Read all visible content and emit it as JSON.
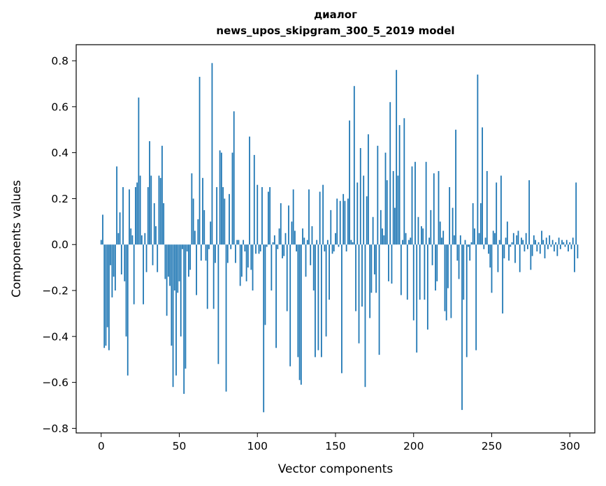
{
  "chart_data": {
    "type": "bar",
    "title": "диалог",
    "subtitle": "news_upos_skipgram_300_5_2019 model",
    "xlabel": "Vector components",
    "ylabel": "Components values",
    "xlim": [
      -16,
      316
    ],
    "ylim": [
      -0.82,
      0.87
    ],
    "xticks": [
      0,
      50,
      100,
      150,
      200,
      250,
      300
    ],
    "yticks": [
      -0.8,
      -0.6,
      -0.4,
      -0.2,
      0.0,
      0.2,
      0.4,
      0.6,
      0.8
    ],
    "ytick_labels": [
      "−0.8",
      "−0.6",
      "−0.4",
      "−0.2",
      "0.0",
      "0.2",
      "0.4",
      "0.6",
      "0.8"
    ],
    "bar_color": "#1f77b4",
    "values": [
      0.02,
      0.13,
      -0.45,
      -0.44,
      -0.36,
      -0.46,
      -0.09,
      -0.23,
      -0.14,
      -0.2,
      0.34,
      0.05,
      0.14,
      -0.13,
      0.25,
      -0.16,
      -0.4,
      -0.57,
      0.24,
      0.07,
      0.04,
      -0.26,
      0.25,
      0.27,
      0.64,
      0.3,
      0.04,
      -0.26,
      0.05,
      -0.12,
      0.25,
      0.45,
      0.3,
      -0.09,
      0.18,
      0.08,
      -0.12,
      0.3,
      0.29,
      0.43,
      0.18,
      -0.15,
      -0.31,
      -0.14,
      -0.18,
      -0.44,
      -0.62,
      -0.2,
      -0.57,
      -0.21,
      -0.16,
      -0.4,
      -0.02,
      -0.65,
      -0.54,
      -0.03,
      -0.14,
      -0.11,
      0.31,
      0.2,
      0.06,
      -0.22,
      0.11,
      0.73,
      -0.07,
      0.29,
      0.15,
      -0.07,
      -0.28,
      -0.02,
      0.1,
      0.79,
      -0.28,
      -0.08,
      0.25,
      -0.52,
      0.41,
      0.4,
      0.25,
      0.2,
      -0.64,
      -0.08,
      0.22,
      -0.02,
      0.4,
      0.58,
      -0.08,
      0.02,
      0.02,
      -0.18,
      -0.14,
      0.02,
      -0.03,
      -0.16,
      -0.1,
      0.47,
      -0.11,
      -0.2,
      0.39,
      -0.04,
      0.26,
      -0.04,
      -0.03,
      0.25,
      -0.73,
      -0.35,
      -0.01,
      0.23,
      0.25,
      -0.2,
      0.01,
      0.04,
      -0.45,
      -0.02,
      0.07,
      0.18,
      -0.06,
      -0.05,
      0.05,
      -0.29,
      0.17,
      -0.53,
      0.1,
      0.24,
      0.06,
      -0.03,
      -0.49,
      -0.59,
      -0.61,
      0.07,
      0.03,
      -0.14,
      0.02,
      0.24,
      -0.09,
      0.08,
      -0.2,
      -0.49,
      0.02,
      -0.46,
      0.23,
      -0.49,
      0.26,
      -0.03,
      -0.4,
      0.02,
      -0.24,
      0.15,
      -0.04,
      -0.03,
      0.05,
      0.2,
      -0.01,
      0.19,
      -0.56,
      0.22,
      0.19,
      -0.03,
      0.2,
      0.54,
      0.02,
      0.01,
      0.69,
      -0.29,
      0.27,
      -0.43,
      0.42,
      -0.27,
      0.3,
      -0.62,
      0.21,
      0.48,
      -0.32,
      -0.21,
      0.12,
      -0.13,
      -0.21,
      0.43,
      -0.48,
      0.15,
      0.07,
      0.04,
      0.4,
      0.28,
      -0.16,
      0.62,
      -0.17,
      0.32,
      0.16,
      0.76,
      0.3,
      0.52,
      -0.22,
      0.02,
      0.55,
      0.05,
      -0.24,
      0.02,
      0.03,
      0.34,
      -0.33,
      0.36,
      -0.47,
      0.12,
      -0.24,
      0.08,
      0.07,
      -0.24,
      0.36,
      -0.37,
      0.03,
      0.15,
      -0.09,
      0.31,
      -0.2,
      -0.16,
      0.32,
      0.1,
      0.03,
      0.06,
      -0.29,
      -0.33,
      -0.19,
      0.25,
      -0.32,
      0.16,
      0.04,
      0.5,
      -0.07,
      -0.15,
      0.04,
      -0.72,
      -0.24,
      0.02,
      -0.49,
      -0.01,
      -0.07,
      0.01,
      0.18,
      0.07,
      -0.46,
      0.74,
      0.05,
      0.18,
      0.51,
      -0.02,
      0.03,
      0.32,
      -0.04,
      -0.1,
      -0.21,
      0.06,
      0.05,
      0.27,
      -0.12,
      0.02,
      0.3,
      -0.3,
      -0.06,
      0.03,
      0.1,
      -0.07,
      -0.01,
      0.01,
      0.05,
      -0.08,
      0.04,
      0.06,
      -0.12,
      0.03,
      0.02,
      -0.03,
      0.05,
      -0.02,
      0.28,
      -0.11,
      -0.05,
      0.04,
      0.02,
      -0.03,
      0.01,
      -0.04,
      0.06,
      0.02,
      -0.06,
      0.03,
      -0.02,
      0.04,
      -0.01,
      0.02,
      -0.03,
      0.01,
      -0.05,
      0.03,
      -0.02,
      0.02,
      0.01,
      -0.01,
      0.02,
      -0.03,
      0.01,
      -0.02,
      0.03,
      -0.12,
      0.27,
      -0.06
    ]
  }
}
